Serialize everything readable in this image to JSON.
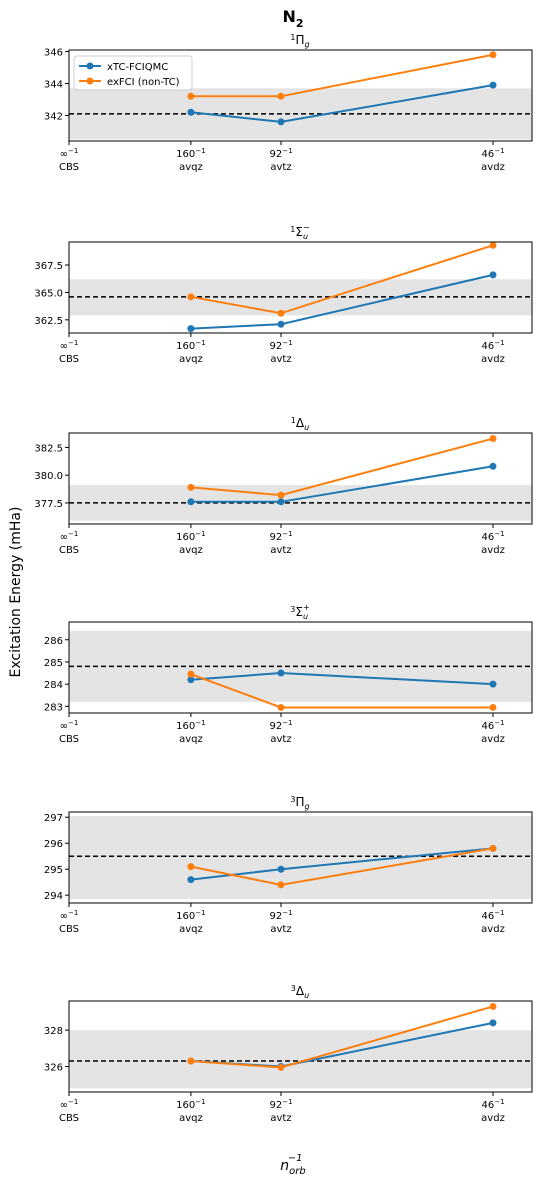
{
  "figure": {
    "title_main": "N",
    "title_sub": "2",
    "ylabel": "Excitation Energy (mHa)",
    "xlabel_base": "n",
    "xlabel_sub": "orb",
    "xlabel_sup": "−1"
  },
  "legend": {
    "entries": [
      "xTC-FCIQMC",
      "exFCI (non-TC)"
    ],
    "placement": "upper-left (first panel only)"
  },
  "colors": {
    "xtc": "#1f77b4",
    "exfci": "#ff7f0e",
    "band": "#e4e4e4",
    "reference": "#000000"
  },
  "chart_data": [
    {
      "type": "line",
      "title": {
        "pre": "1",
        "base": "Π",
        "sub": "g",
        "sup": ""
      },
      "x_ticks": [
        {
          "x": 0,
          "top": "∞",
          "sup": "−1",
          "bottom": "CBS"
        },
        {
          "x": 0.00625,
          "top": "160",
          "sup": "−1",
          "bottom": "avqz"
        },
        {
          "x": 0.01087,
          "top": "92",
          "sup": "−1",
          "bottom": "avtz"
        },
        {
          "x": 0.02174,
          "top": "46",
          "sup": "−1",
          "bottom": "avdz"
        }
      ],
      "ylim": [
        340.4,
        346.1
      ],
      "yticks": [
        342,
        344,
        346
      ],
      "ytick_labels": [
        "342",
        "344",
        "346"
      ],
      "reference": 342.1,
      "band": [
        340.5,
        343.7
      ],
      "series": [
        {
          "name": "xTC-FCIQMC",
          "x": [
            0.00625,
            0.01087,
            0.02174
          ],
          "y": [
            342.2,
            341.6,
            343.9
          ]
        },
        {
          "name": "exFCI (non-TC)",
          "x": [
            0.00625,
            0.01087,
            0.02174
          ],
          "y": [
            343.2,
            343.2,
            345.8
          ]
        }
      ],
      "show_legend": true
    },
    {
      "type": "line",
      "title": {
        "pre": "1",
        "base": "Σ",
        "sub": "u",
        "sup": "−"
      },
      "x_ticks": [
        {
          "x": 0,
          "top": "∞",
          "sup": "−1",
          "bottom": "CBS"
        },
        {
          "x": 0.00625,
          "top": "160",
          "sup": "−1",
          "bottom": "avqz"
        },
        {
          "x": 0.01087,
          "top": "92",
          "sup": "−1",
          "bottom": "avtz"
        },
        {
          "x": 0.02174,
          "top": "46",
          "sup": "−1",
          "bottom": "avdz"
        }
      ],
      "ylim": [
        361.3,
        369.6
      ],
      "yticks": [
        362.5,
        365.0,
        367.5
      ],
      "ytick_labels": [
        "362.5",
        "365.0",
        "367.5"
      ],
      "reference": 364.6,
      "band": [
        362.9,
        366.2
      ],
      "series": [
        {
          "name": "xTC-FCIQMC",
          "x": [
            0.00625,
            0.01087,
            0.02174
          ],
          "y": [
            361.7,
            362.1,
            366.6
          ]
        },
        {
          "name": "exFCI (non-TC)",
          "x": [
            0.00625,
            0.01087,
            0.02174
          ],
          "y": [
            364.6,
            363.1,
            369.3
          ]
        }
      ],
      "show_legend": false
    },
    {
      "type": "line",
      "title": {
        "pre": "1",
        "base": "Δ",
        "sub": "u",
        "sup": ""
      },
      "x_ticks": [
        {
          "x": 0,
          "top": "∞",
          "sup": "−1",
          "bottom": "CBS"
        },
        {
          "x": 0.00625,
          "top": "160",
          "sup": "−1",
          "bottom": "avqz"
        },
        {
          "x": 0.01087,
          "top": "92",
          "sup": "−1",
          "bottom": "avtz"
        },
        {
          "x": 0.02174,
          "top": "46",
          "sup": "−1",
          "bottom": "avdz"
        }
      ],
      "ylim": [
        375.6,
        383.8
      ],
      "yticks": [
        377.5,
        380.0,
        382.5
      ],
      "ytick_labels": [
        "377.5",
        "380.0",
        "382.5"
      ],
      "reference": 377.5,
      "band": [
        375.9,
        379.1
      ],
      "series": [
        {
          "name": "xTC-FCIQMC",
          "x": [
            0.00625,
            0.01087,
            0.02174
          ],
          "y": [
            377.6,
            377.6,
            380.8
          ]
        },
        {
          "name": "exFCI (non-TC)",
          "x": [
            0.00625,
            0.01087,
            0.02174
          ],
          "y": [
            378.9,
            378.2,
            383.3
          ]
        }
      ],
      "show_legend": false
    },
    {
      "type": "line",
      "title": {
        "pre": "3",
        "base": "Σ",
        "sub": "u",
        "sup": "+"
      },
      "x_ticks": [
        {
          "x": 0,
          "top": "∞",
          "sup": "−1",
          "bottom": "CBS"
        },
        {
          "x": 0.00625,
          "top": "160",
          "sup": "−1",
          "bottom": "avqz"
        },
        {
          "x": 0.01087,
          "top": "92",
          "sup": "−1",
          "bottom": "avtz"
        },
        {
          "x": 0.02174,
          "top": "46",
          "sup": "−1",
          "bottom": "avdz"
        }
      ],
      "ylim": [
        282.7,
        286.8
      ],
      "yticks": [
        283,
        284,
        285,
        286
      ],
      "ytick_labels": [
        "283",
        "284",
        "285",
        "286"
      ],
      "reference": 284.8,
      "band": [
        283.2,
        286.4
      ],
      "series": [
        {
          "name": "xTC-FCIQMC",
          "x": [
            0.00625,
            0.01087,
            0.02174
          ],
          "y": [
            284.2,
            284.5,
            284.0
          ]
        },
        {
          "name": "exFCI (non-TC)",
          "x": [
            0.00625,
            0.01087,
            0.02174
          ],
          "y": [
            284.45,
            282.95,
            282.95
          ]
        }
      ],
      "show_legend": false
    },
    {
      "type": "line",
      "title": {
        "pre": "3",
        "base": "Π",
        "sub": "g",
        "sup": ""
      },
      "x_ticks": [
        {
          "x": 0,
          "top": "∞",
          "sup": "−1",
          "bottom": "CBS"
        },
        {
          "x": 0.00625,
          "top": "160",
          "sup": "−1",
          "bottom": "avqz"
        },
        {
          "x": 0.01087,
          "top": "92",
          "sup": "−1",
          "bottom": "avtz"
        },
        {
          "x": 0.02174,
          "top": "46",
          "sup": "−1",
          "bottom": "avdz"
        }
      ],
      "ylim": [
        293.7,
        297.2
      ],
      "yticks": [
        294,
        295,
        296,
        297
      ],
      "ytick_labels": [
        "294",
        "295",
        "296",
        "297"
      ],
      "reference": 295.5,
      "band": [
        293.85,
        297.05
      ],
      "series": [
        {
          "name": "xTC-FCIQMC",
          "x": [
            0.00625,
            0.01087,
            0.02174
          ],
          "y": [
            294.6,
            295.0,
            295.8
          ]
        },
        {
          "name": "exFCI (non-TC)",
          "x": [
            0.00625,
            0.01087,
            0.02174
          ],
          "y": [
            295.1,
            294.4,
            295.8
          ]
        }
      ],
      "show_legend": false
    },
    {
      "type": "line",
      "title": {
        "pre": "3",
        "base": "Δ",
        "sub": "u",
        "sup": ""
      },
      "x_ticks": [
        {
          "x": 0,
          "top": "∞",
          "sup": "−1",
          "bottom": "CBS"
        },
        {
          "x": 0.00625,
          "top": "160",
          "sup": "−1",
          "bottom": "avqz"
        },
        {
          "x": 0.01087,
          "top": "92",
          "sup": "−1",
          "bottom": "avtz"
        },
        {
          "x": 0.02174,
          "top": "46",
          "sup": "−1",
          "bottom": "avdz"
        }
      ],
      "ylim": [
        324.6,
        329.6
      ],
      "yticks": [
        326,
        328
      ],
      "ytick_labels": [
        "326",
        "328"
      ],
      "reference": 326.3,
      "band": [
        324.8,
        328.0
      ],
      "series": [
        {
          "name": "xTC-FCIQMC",
          "x": [
            0.00625,
            0.01087,
            0.02174
          ],
          "y": [
            326.3,
            326.0,
            328.4
          ]
        },
        {
          "name": "exFCI (non-TC)",
          "x": [
            0.00625,
            0.01087,
            0.02174
          ],
          "y": [
            326.3,
            325.95,
            329.3
          ]
        }
      ],
      "show_legend": false
    }
  ]
}
